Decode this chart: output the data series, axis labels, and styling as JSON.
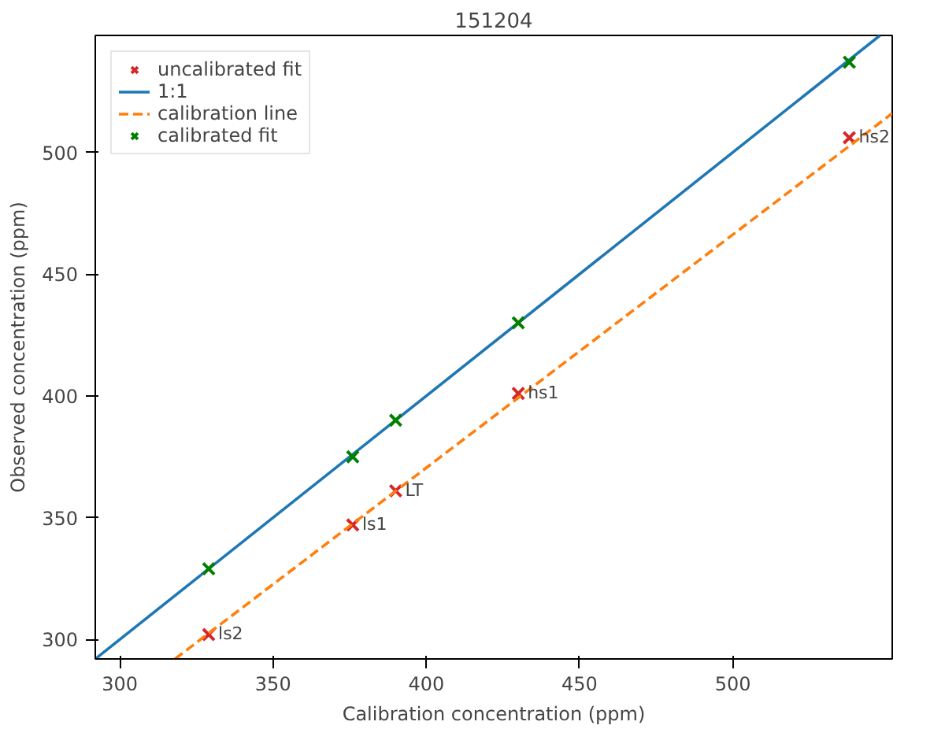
{
  "chart_data": {
    "type": "scatter",
    "title": "151204",
    "xlabel": "Calibration concentration (ppm)",
    "ylabel": "Observed concentration (ppm)",
    "xlim": [
      292,
      552
    ],
    "ylim": [
      292,
      548
    ],
    "xticks": [
      300,
      350,
      400,
      450,
      500
    ],
    "yticks": [
      300,
      350,
      400,
      450,
      500
    ],
    "grid": false,
    "legend": "top left",
    "series": [
      {
        "name": "uncalibrated fit",
        "marker": "cross",
        "color": "#d62728",
        "x": [
          329,
          376,
          390,
          430,
          538
        ],
        "values": [
          302,
          347,
          361,
          401,
          506
        ]
      },
      {
        "name": "1:1",
        "type": "line",
        "line_style": "solid",
        "color": "#1f77b4",
        "x": [
          292,
          548
        ],
        "values": [
          292,
          548
        ]
      },
      {
        "name": "calibration line",
        "type": "line",
        "line_style": "dashed",
        "color": "#ff7f0e",
        "x": [
          318,
          552
        ],
        "values": [
          292,
          516
        ]
      },
      {
        "name": "calibrated fit",
        "marker": "cross",
        "color": "#008000",
        "x": [
          329,
          376,
          390,
          430,
          538
        ],
        "values": [
          329,
          375,
          390,
          430,
          537
        ]
      }
    ],
    "annotations": [
      {
        "text": "ls2",
        "x": 329,
        "y": 302
      },
      {
        "text": "ls1",
        "x": 376,
        "y": 347
      },
      {
        "text": "LT",
        "x": 390,
        "y": 361
      },
      {
        "text": "hs1",
        "x": 430,
        "y": 401
      },
      {
        "text": "hs2",
        "x": 538,
        "y": 506
      }
    ]
  }
}
